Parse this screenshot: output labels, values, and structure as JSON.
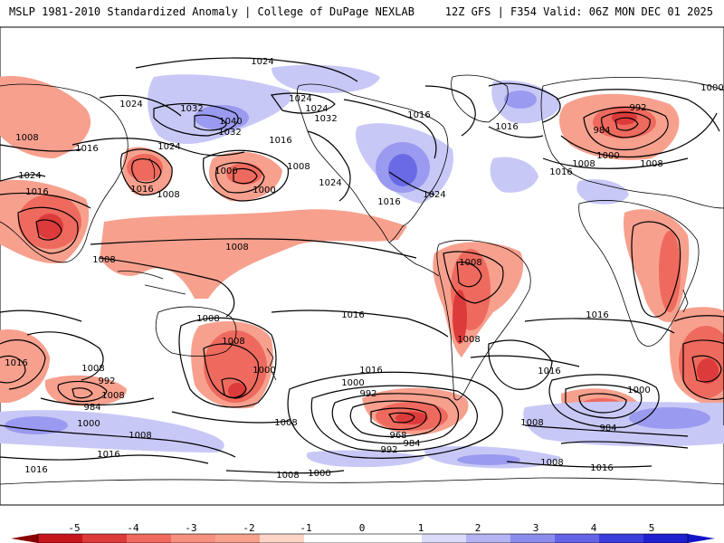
{
  "header": {
    "left_title": "MSLP 1981-2010 Standardized Anomaly | College of DuPage NEXLAB",
    "right_title": "12Z GFS | F354 Valid: 06Z MON DEC 01 2025"
  },
  "isobars": {
    "labels": [
      "1024",
      "1024",
      "1024",
      "1024",
      "1024",
      "1024",
      "1024",
      "1024",
      "1032",
      "1032",
      "1040",
      "1032",
      "1016",
      "1016",
      "1016",
      "1016",
      "1016",
      "1016",
      "1016",
      "1016",
      "1016",
      "1016",
      "1016",
      "1016",
      "1016",
      "1016",
      "1016",
      "1016",
      "1008",
      "1008",
      "1008",
      "1008",
      "1008",
      "1008",
      "1008",
      "1008",
      "1008",
      "1008",
      "1008",
      "1008",
      "1008",
      "1008",
      "1008",
      "1008",
      "1008",
      "1008",
      "1000",
      "1000",
      "1000",
      "1000",
      "1000",
      "1000",
      "1000",
      "1000",
      "992",
      "992",
      "992",
      "992",
      "984",
      "984",
      "984",
      "984",
      "968",
      "1000"
    ]
  },
  "anomaly_scale": {
    "labels": [
      "-5",
      "-4",
      "-3",
      "-2",
      "-1",
      "0",
      "1",
      "2",
      "3",
      "4",
      "5"
    ],
    "colors": [
      "#8b0000",
      "#c8161e",
      "#dd3b3b",
      "#ef6a5e",
      "#f7a08e",
      "#fcd4c8",
      "#ffffff",
      "#ffffff",
      "#dcdcfa",
      "#b4b4f4",
      "#8c8ced",
      "#6464e6",
      "#3c3cdc",
      "#1414c8"
    ]
  },
  "map_colors": {
    "ocean": "#ffffff",
    "coast": "#000000",
    "neg_light": "#f7a08e",
    "neg_mid": "#ef6a5e",
    "neg_strong": "#dd3b3b",
    "neg_extreme": "#b01c1c",
    "pos_light": "#c8c8f7",
    "pos_mid": "#9a9af0",
    "pos_strong": "#6a6ae6"
  }
}
